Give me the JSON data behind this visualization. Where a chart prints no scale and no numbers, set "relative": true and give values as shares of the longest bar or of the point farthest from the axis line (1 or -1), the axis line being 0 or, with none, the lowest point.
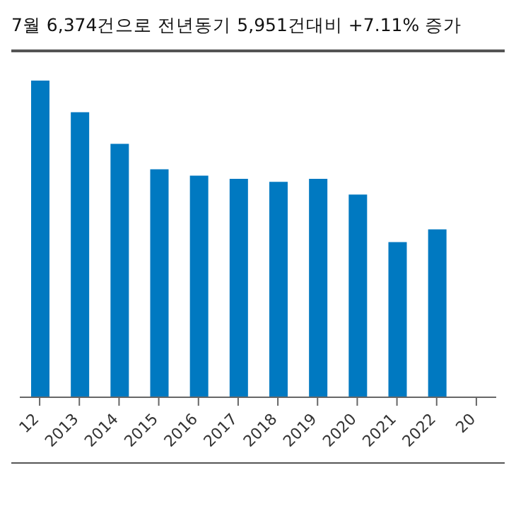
{
  "chart_data": {
    "type": "bar",
    "title": "7월 6,374건으로 전년동기 5,951건대비 +7.11% 증가",
    "relative": true,
    "categories": [
      "12",
      "2013",
      "2014",
      "2015",
      "2016",
      "2017",
      "2018",
      "2019",
      "2020",
      "2021",
      "2022",
      "20"
    ],
    "values": [
      1,
      0.9,
      0.8,
      0.72,
      0.7,
      0.69,
      0.68,
      0.69,
      0.64,
      0.49,
      0.53,
      null
    ],
    "color": "#0079c1"
  }
}
